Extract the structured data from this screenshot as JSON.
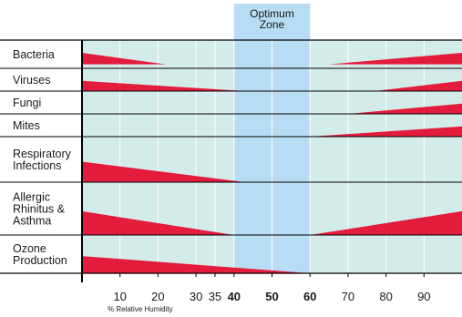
{
  "chart_data": {
    "type": "area",
    "title": "",
    "optimum_zone": {
      "label_lines": [
        "Optimum",
        "Zone"
      ],
      "from": 40,
      "to": 60,
      "color": "#b9dcf5"
    },
    "x_ticks": [
      {
        "label": "10",
        "value": 10,
        "bold": false
      },
      {
        "label": "20",
        "value": 20,
        "bold": false
      },
      {
        "label": "30",
        "value": 30,
        "bold": false
      },
      {
        "label": "35",
        "value": 35,
        "bold": false
      },
      {
        "label": "40",
        "value": 40,
        "bold": true
      },
      {
        "label": "50",
        "value": 50,
        "bold": true
      },
      {
        "label": "60",
        "value": 60,
        "bold": true
      },
      {
        "label": "70",
        "value": 70,
        "bold": false
      },
      {
        "label": "80",
        "value": 80,
        "bold": false
      },
      {
        "label": "90",
        "value": 90,
        "bold": false
      }
    ],
    "xlabel": "% Relative Humidity",
    "xlim": [
      0,
      100
    ],
    "grid": true,
    "colors": {
      "band": "#d3ebe9",
      "wedge": "#e31b3c",
      "grid": "#ffffff",
      "axis": "#000000"
    },
    "rows": [
      {
        "name": "bacteria",
        "label_lines": [
          "Bacteria"
        ],
        "wedges": [
          {
            "from": 0,
            "to": 22,
            "side": "left"
          },
          {
            "from": 65,
            "to": 100,
            "side": "right"
          }
        ]
      },
      {
        "name": "viruses",
        "label_lines": [
          "Viruses"
        ],
        "wedges": [
          {
            "from": 0,
            "to": 43,
            "side": "left"
          },
          {
            "from": 77,
            "to": 100,
            "side": "right"
          }
        ]
      },
      {
        "name": "fungi",
        "label_lines": [
          "Fungi"
        ],
        "wedges": [
          {
            "from": 70,
            "to": 100,
            "side": "right"
          }
        ]
      },
      {
        "name": "mites",
        "label_lines": [
          "Mites"
        ],
        "wedges": [
          {
            "from": 60,
            "to": 100,
            "side": "right"
          }
        ]
      },
      {
        "name": "respiratory",
        "label_lines": [
          "Respiratory",
          "Infections"
        ],
        "wedges": [
          {
            "from": 0,
            "to": 43,
            "side": "left"
          }
        ]
      },
      {
        "name": "allergic",
        "label_lines": [
          "Allergic",
          "Rhinitus &",
          "Asthma"
        ],
        "wedges": [
          {
            "from": 0,
            "to": 40,
            "side": "left"
          },
          {
            "from": 60,
            "to": 100,
            "side": "right"
          }
        ]
      },
      {
        "name": "ozone",
        "label_lines": [
          "Ozone",
          "Production"
        ],
        "wedges": [
          {
            "from": 0,
            "to": 60,
            "side": "left"
          }
        ]
      }
    ]
  }
}
